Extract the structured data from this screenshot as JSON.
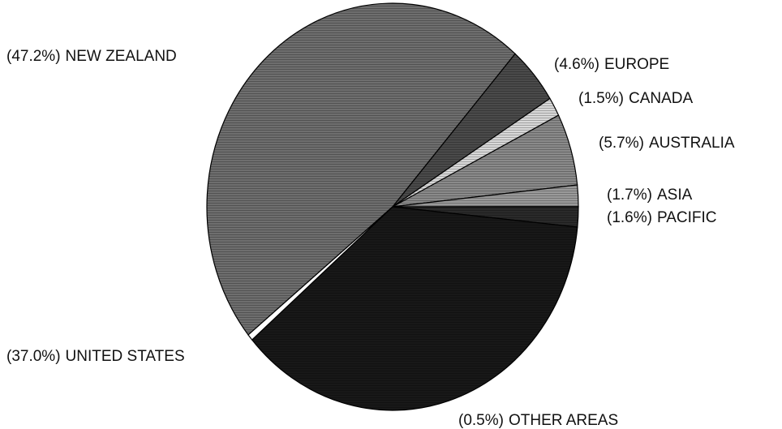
{
  "chart_data": {
    "type": "pie",
    "categories": [
      "NEW ZEALAND",
      "EUROPE",
      "CANADA",
      "AUSTRALIA",
      "ASIA",
      "PACIFIC",
      "UNITED STATES",
      "OTHER AREAS"
    ],
    "values": [
      47.2,
      4.6,
      1.5,
      5.7,
      1.7,
      1.6,
      37.0,
      0.5
    ],
    "value_labels": [
      "(47.2%)",
      "(4.6%)",
      "(1.5%)",
      "(5.7%)",
      "(1.7%)",
      "(1.6%)",
      "(37.0%)",
      "(0.5%)"
    ],
    "colors": [
      "#6e6e6e",
      "#4a4a4a",
      "#d8d8d8",
      "#8a8a8a",
      "#9a9a9a",
      "#2a2a2a",
      "#181818",
      "#ffffff"
    ]
  }
}
